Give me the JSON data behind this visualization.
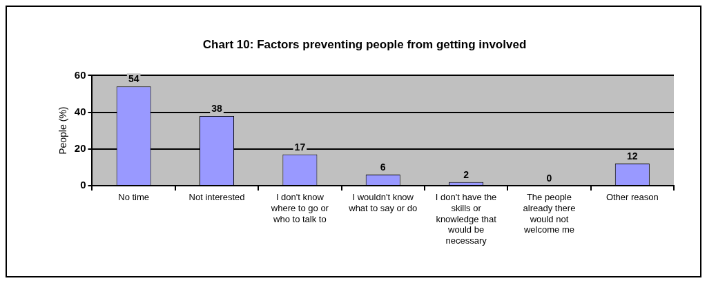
{
  "chart_data": {
    "type": "bar",
    "title": "Chart 10: Factors preventing people from getting involved",
    "ylabel": "People (%)",
    "categories": [
      "No time",
      "Not interested",
      "I don't know where to go or who to talk to",
      "I wouldn't know what to say or do",
      "I don't have the skills or knowledge that would be necessary",
      "The people already there would not welcome me",
      "Other reason"
    ],
    "values": [
      54,
      38,
      17,
      6,
      2,
      0,
      12
    ],
    "color": "#9999ff",
    "ylim": [
      0,
      60
    ],
    "yticks": [
      0,
      20,
      40,
      60
    ],
    "grid": "y",
    "data_labels": true
  }
}
